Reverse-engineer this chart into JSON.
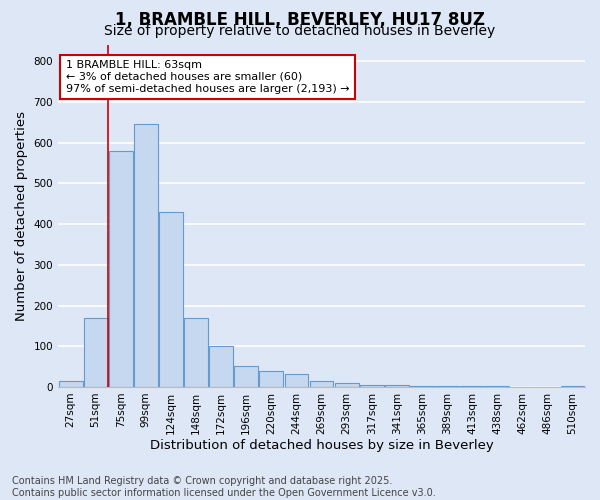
{
  "title_line1": "1, BRAMBLE HILL, BEVERLEY, HU17 8UZ",
  "title_line2": "Size of property relative to detached houses in Beverley",
  "xlabel": "Distribution of detached houses by size in Beverley",
  "ylabel": "Number of detached properties",
  "footnote": "Contains HM Land Registry data © Crown copyright and database right 2025.\nContains public sector information licensed under the Open Government Licence v3.0.",
  "categories": [
    "27sqm",
    "51sqm",
    "75sqm",
    "99sqm",
    "124sqm",
    "148sqm",
    "172sqm",
    "196sqm",
    "220sqm",
    "244sqm",
    "269sqm",
    "293sqm",
    "317sqm",
    "341sqm",
    "365sqm",
    "389sqm",
    "413sqm",
    "438sqm",
    "462sqm",
    "486sqm",
    "510sqm"
  ],
  "values": [
    15,
    170,
    580,
    645,
    430,
    170,
    100,
    52,
    38,
    32,
    15,
    10,
    6,
    4,
    3,
    3,
    3,
    2,
    1,
    1,
    2
  ],
  "bar_color": "#c5d8f0",
  "bar_edge_color": "#6699cc",
  "background_color": "#dde7f5",
  "plot_bg_color": "#dde7f5",
  "grid_color": "#ffffff",
  "annotation_text": "1 BRAMBLE HILL: 63sqm\n← 3% of detached houses are smaller (60)\n97% of semi-detached houses are larger (2,193) →",
  "annotation_box_color": "#ffffff",
  "annotation_box_edge_color": "#cc0000",
  "red_line_x": 1.5,
  "ylim": [
    0,
    840
  ],
  "yticks": [
    0,
    100,
    200,
    300,
    400,
    500,
    600,
    700,
    800
  ],
  "title_fontsize": 12,
  "subtitle_fontsize": 10,
  "axis_label_fontsize": 9.5,
  "tick_fontsize": 7.5,
  "annotation_fontsize": 8,
  "footnote_fontsize": 7
}
